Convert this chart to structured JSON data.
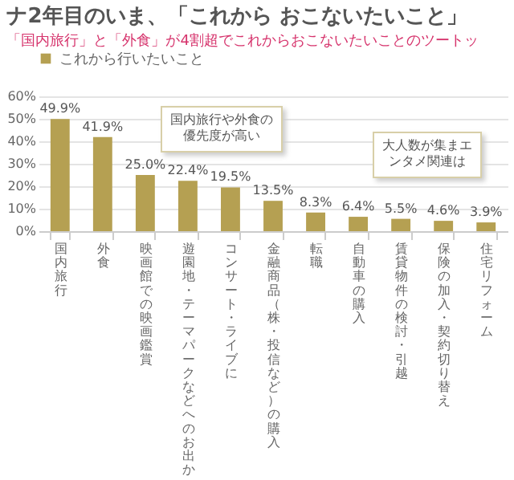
{
  "chart_data": {
    "type": "bar",
    "title": "ナ2年目のいま、「これから おこないたいこと」",
    "subtitle": "「国内旅行」と「外食」が4割超でこれからおこないたいことのツートッ",
    "categories": [
      "国内旅行",
      "外食",
      "映画館での映画鑑賞",
      "遊園地・テーマパークなどへのお出か",
      "コンサート・ライブに",
      "金融商品（株・投信など）の購入",
      "転職",
      "自動車の購入",
      "賃貸物件の検討・引越",
      "保険の加入・契約切り替え",
      "住宅リフォーム"
    ],
    "series": [
      {
        "name": "これから行いたいこと",
        "color": "#b5a052",
        "values": [
          49.9,
          41.9,
          25.0,
          22.4,
          19.5,
          13.5,
          8.3,
          6.4,
          5.5,
          4.6,
          3.9
        ],
        "value_labels": [
          "49.9%",
          "41.9%",
          "25.0%",
          "22.4%",
          "19.5%",
          "13.5%",
          "8.3%",
          "6.4%",
          "5.5%",
          "4.6%",
          "3.9%"
        ]
      }
    ],
    "ylim": [
      0,
      60
    ],
    "yticks": [
      {
        "value": 0,
        "label": "0%"
      },
      {
        "value": 10,
        "label": "10%"
      },
      {
        "value": 20,
        "label": "20%"
      },
      {
        "value": 30,
        "label": "30%"
      },
      {
        "value": 40,
        "label": "40%"
      },
      {
        "value": 50,
        "label": "50%"
      },
      {
        "value": 60,
        "label": "60%"
      }
    ],
    "grid": "y",
    "legend": "top left",
    "annotations": [
      "国内旅行や外食の優先度が高い",
      "大人数が集まエンタメ関連は"
    ]
  }
}
